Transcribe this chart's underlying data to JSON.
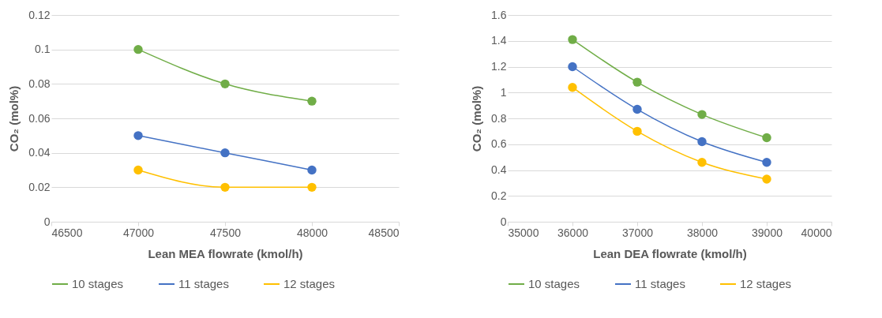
{
  "chart_data": [
    {
      "type": "line",
      "xlabel": "Lean MEA flowrate (kmol/h)",
      "ylabel": "CO₂ (mol%)",
      "x": [
        47000,
        47500,
        48000
      ],
      "xlim": [
        46500,
        48500
      ],
      "xticks": [
        46500,
        47000,
        47500,
        48000,
        48500
      ],
      "ylim": [
        0,
        0.12
      ],
      "yticks": [
        0,
        0.02,
        0.04,
        0.06,
        0.08,
        0.1,
        0.12
      ],
      "grid": "y",
      "legend": "bottom",
      "marker": "circle",
      "line_style": "solid",
      "series": [
        {
          "name": "10 stages",
          "color": "#70ad47",
          "values": [
            0.1,
            0.08,
            0.07
          ]
        },
        {
          "name": "11 stages",
          "color": "#4472c4",
          "values": [
            0.05,
            0.04,
            0.03
          ]
        },
        {
          "name": "12 stages",
          "color": "#ffc000",
          "values": [
            0.03,
            0.02,
            0.02
          ]
        }
      ]
    },
    {
      "type": "line",
      "xlabel": "Lean DEA flowrate (kmol/h)",
      "ylabel": "CO₂ (mol%)",
      "x": [
        36000,
        37000,
        38000,
        39000
      ],
      "xlim": [
        35000,
        40000
      ],
      "xticks": [
        35000,
        36000,
        37000,
        38000,
        39000,
        40000
      ],
      "ylim": [
        0,
        1.6
      ],
      "yticks": [
        0,
        0.2,
        0.4,
        0.6,
        0.8,
        1,
        1.2,
        1.4,
        1.6
      ],
      "grid": "y",
      "legend": "bottom",
      "marker": "circle",
      "line_style": "solid",
      "series": [
        {
          "name": "10 stages",
          "color": "#70ad47",
          "values": [
            1.41,
            1.08,
            0.83,
            0.65
          ]
        },
        {
          "name": "11 stages",
          "color": "#4472c4",
          "values": [
            1.2,
            0.87,
            0.62,
            0.46
          ]
        },
        {
          "name": "12 stages",
          "color": "#ffc000",
          "values": [
            1.04,
            0.7,
            0.46,
            0.33
          ]
        }
      ]
    }
  ]
}
